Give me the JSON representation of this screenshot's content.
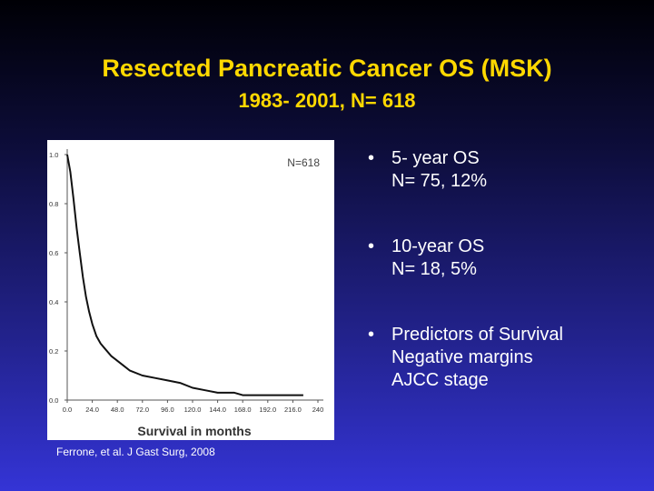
{
  "slide": {
    "title": "Resected Pancreatic Cancer OS (MSK)",
    "subtitle": "1983- 2001, N= 618",
    "bullets": [
      {
        "marker": "•",
        "lines": [
          "5- year OS",
          "N= 75, 12%"
        ]
      },
      {
        "marker": "•",
        "lines": [
          "10-year OS",
          "N= 18, 5%"
        ]
      },
      {
        "marker": "•",
        "lines": [
          "Predictors of Survival",
          "Negative margins",
          "AJCC stage"
        ]
      }
    ],
    "citation": "Ferrone, et al.  J Gast Surg, 2008"
  },
  "chart_data": {
    "type": "line",
    "xlabel": "Survival in months",
    "ylabel": "",
    "annotation": "N=618",
    "xlim": [
      0,
      240
    ],
    "ylim": [
      0,
      1
    ],
    "xticks": [
      "0.0",
      "24.0",
      "48.0",
      "72.0",
      "96.0",
      "120.0",
      "144.0",
      "168.0",
      "192.0",
      "216.0",
      "240"
    ],
    "yticks": [
      "0.0",
      "0.2",
      "0.4",
      "0.6",
      "0.8",
      "1.0"
    ],
    "series": [
      {
        "points": [
          [
            0,
            1.0
          ],
          [
            3,
            0.93
          ],
          [
            6,
            0.82
          ],
          [
            9,
            0.7
          ],
          [
            12,
            0.6
          ],
          [
            15,
            0.5
          ],
          [
            18,
            0.42
          ],
          [
            21,
            0.36
          ],
          [
            24,
            0.31
          ],
          [
            28,
            0.26
          ],
          [
            32,
            0.23
          ],
          [
            36,
            0.21
          ],
          [
            42,
            0.18
          ],
          [
            48,
            0.16
          ],
          [
            54,
            0.14
          ],
          [
            60,
            0.12
          ],
          [
            72,
            0.1
          ],
          [
            84,
            0.09
          ],
          [
            96,
            0.08
          ],
          [
            108,
            0.07
          ],
          [
            120,
            0.05
          ],
          [
            132,
            0.04
          ],
          [
            144,
            0.03
          ],
          [
            160,
            0.03
          ],
          [
            168,
            0.02
          ],
          [
            190,
            0.02
          ],
          [
            226,
            0.02
          ]
        ]
      }
    ],
    "grid": false,
    "colors": {
      "line": "#111111",
      "axis": "#555555",
      "tick_label": "#333333",
      "annotation": "#444444",
      "background": "#ffffff"
    }
  }
}
